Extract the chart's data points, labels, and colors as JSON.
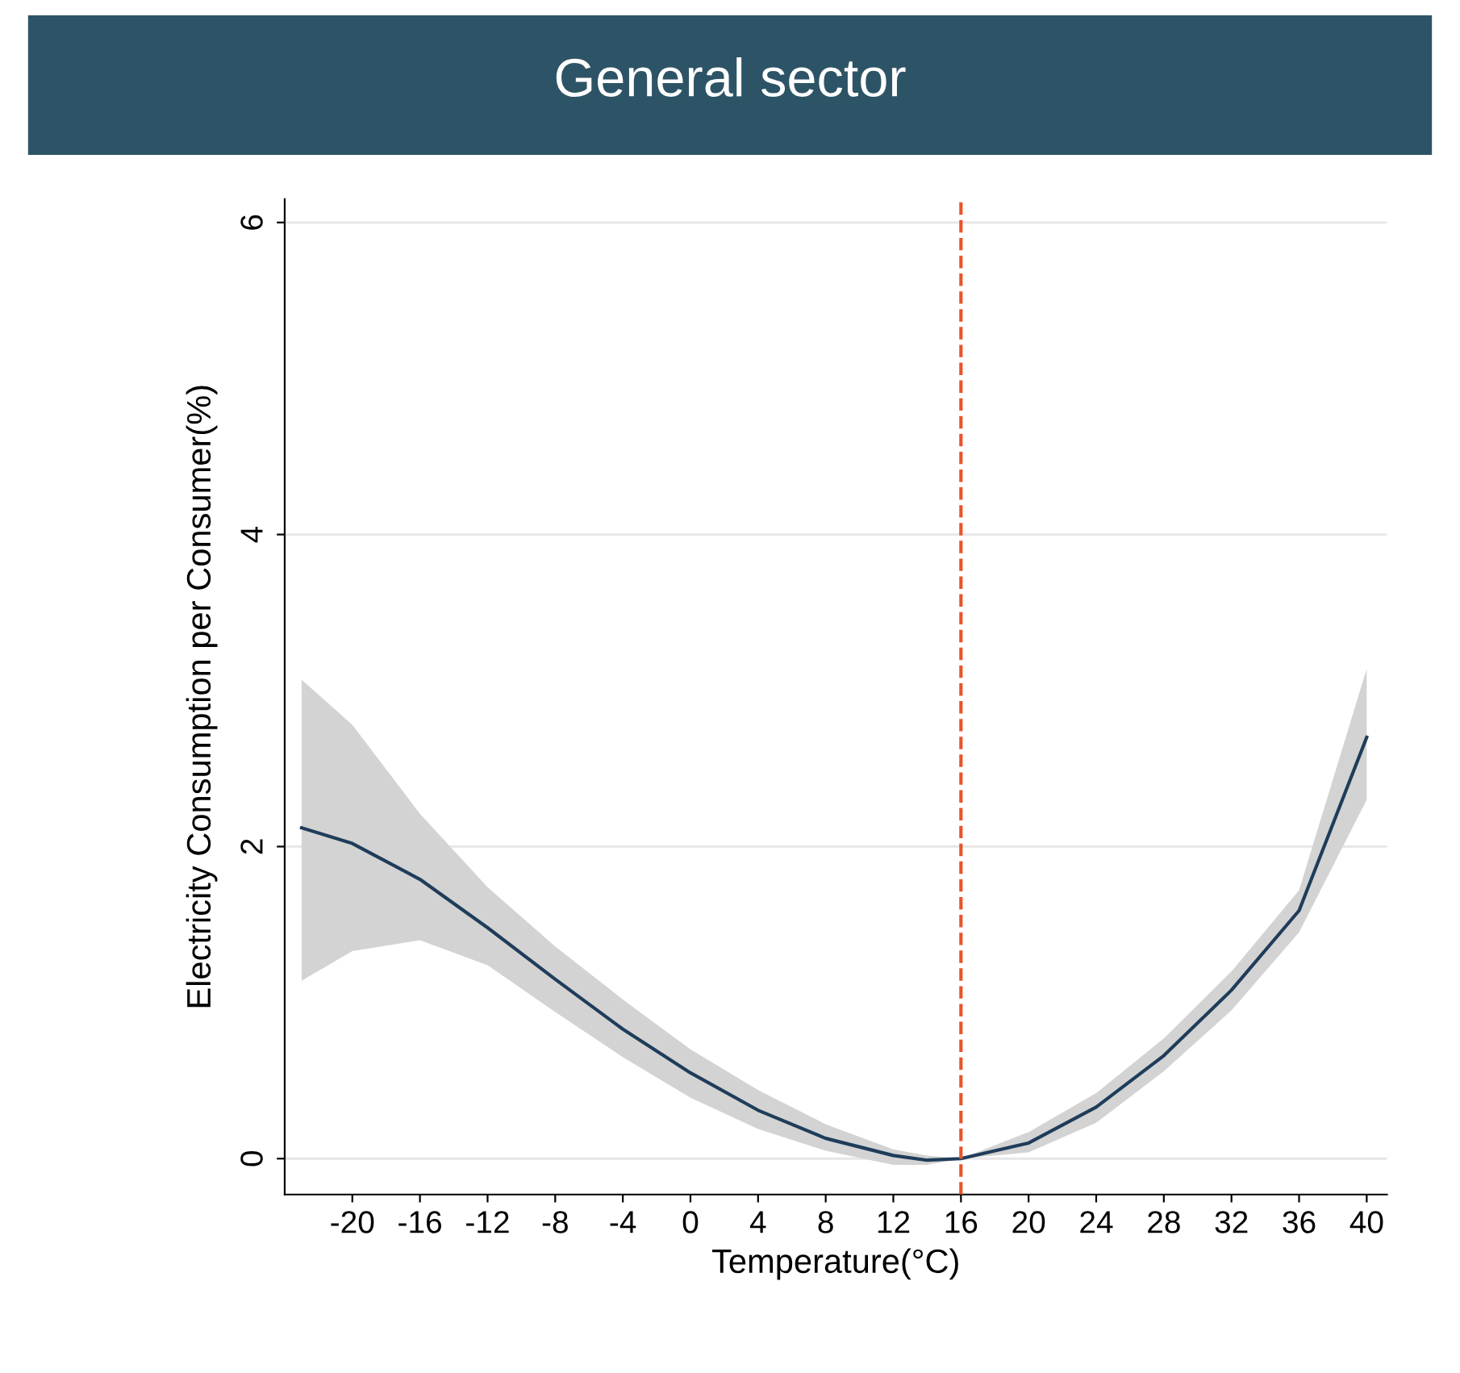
{
  "chart_data": {
    "type": "line",
    "title": "General sector",
    "xlabel": "Temperature(°C)",
    "ylabel": "Electricity Consumption per Consumer(%)",
    "series": [
      {
        "color": "#1f3d5a",
        "x": [
          -23,
          -20,
          -16,
          -12,
          -8,
          -4,
          0,
          4,
          8,
          12,
          14,
          16,
          20,
          24,
          28,
          32,
          36,
          40
        ],
        "values": [
          2.12,
          2.02,
          1.79,
          1.48,
          1.15,
          0.83,
          0.55,
          0.31,
          0.13,
          0.02,
          -0.01,
          0,
          0.1,
          0.33,
          0.66,
          1.08,
          1.59,
          2.7
        ],
        "upper": [
          3.07,
          2.78,
          2.21,
          1.74,
          1.36,
          1.02,
          0.7,
          0.44,
          0.22,
          0.06,
          0.02,
          0,
          0.17,
          0.42,
          0.77,
          1.2,
          1.72,
          3.14
        ],
        "lower": [
          1.14,
          1.33,
          1.4,
          1.24,
          0.94,
          0.65,
          0.39,
          0.19,
          0.05,
          -0.04,
          -0.04,
          0,
          0.04,
          0.23,
          0.56,
          0.95,
          1.45,
          2.3
        ]
      }
    ],
    "xlim": [
      -24,
      41.2
    ],
    "xticks": [
      -20,
      -16,
      -12,
      -8,
      -4,
      0,
      4,
      8,
      12,
      16,
      20,
      24,
      28,
      32,
      36,
      40
    ],
    "ylim": [
      -0.23,
      6.15
    ],
    "yticks": [
      0,
      2,
      4,
      6
    ],
    "ref_lines": [
      {
        "axis": "x",
        "value": 16,
        "color": "#e8542a",
        "line_style": "dashed"
      }
    ],
    "grid": "y",
    "marker": "none",
    "line_style": "solid"
  }
}
